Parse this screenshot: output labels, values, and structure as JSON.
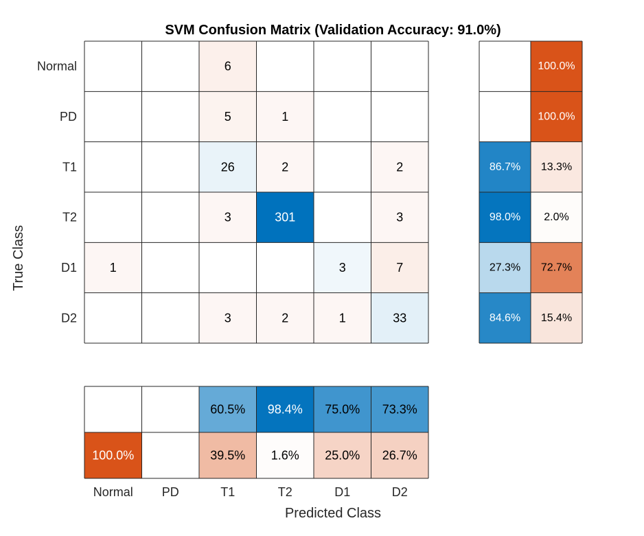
{
  "chart_data": {
    "type": "heatmap",
    "title": "SVM Confusion Matrix (Validation Accuracy: 91.0%)",
    "xlabel": "Predicted Class",
    "ylabel": "True Class",
    "classes": [
      "Normal",
      "PD",
      "T1",
      "T2",
      "D1",
      "D2"
    ],
    "matrix": [
      [
        null,
        null,
        6,
        null,
        null,
        null
      ],
      [
        null,
        null,
        5,
        1,
        null,
        null
      ],
      [
        null,
        null,
        26,
        2,
        null,
        2
      ],
      [
        null,
        null,
        3,
        301,
        null,
        3
      ],
      [
        1,
        null,
        null,
        null,
        3,
        7
      ],
      [
        null,
        null,
        3,
        2,
        1,
        33
      ]
    ],
    "row_summary": {
      "correct": [
        null,
        null,
        "86.7%",
        "98.0%",
        "27.3%",
        "84.6%"
      ],
      "incorrect": [
        "100.0%",
        "100.0%",
        "13.3%",
        "2.0%",
        "72.7%",
        "15.4%"
      ]
    },
    "column_summary": {
      "correct": [
        null,
        null,
        "60.5%",
        "98.4%",
        "75.0%",
        "73.3%"
      ],
      "incorrect": [
        "100.0%",
        null,
        "39.5%",
        "1.6%",
        "25.0%",
        "26.7%"
      ]
    },
    "colors": {
      "correct": "#0072bd",
      "incorrect": "#d95319",
      "grid": "#262626",
      "text_dark": "#000000",
      "text_light": "#ffffff"
    }
  }
}
